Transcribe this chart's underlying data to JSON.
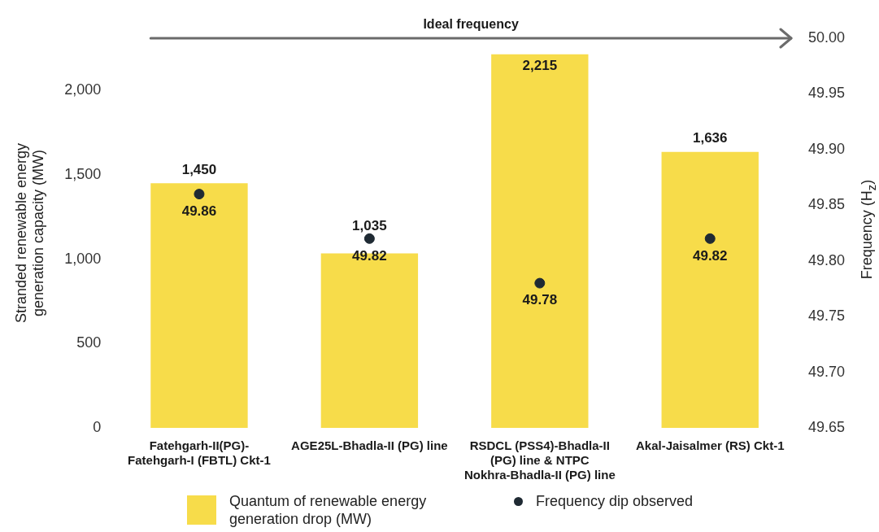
{
  "chart_data": {
    "type": "bar",
    "categories": [
      "Fatehgarh-II(PG)-Fatehgarh-I (FBTL) Ckt-1",
      "AGE25L-Bhadla-II (PG) line",
      "RSDCL (PSS4)-Bhadla-II (PG) line & NTPC Nokhra-Bhadla-II (PG) line",
      "Akal-Jaisalmer (RS) Ckt-1"
    ],
    "ylabel": "Stranded renewable energy generation capacity (MW)",
    "y2label": "Frequency (H$_{z}$)",
    "ylim": [
      0,
      2310
    ],
    "yticks": [
      {
        "value": 0,
        "label": "0"
      },
      {
        "value": 500,
        "label": "500"
      },
      {
        "value": 1000,
        "label": "1,000"
      },
      {
        "value": 1500,
        "label": "1,500"
      },
      {
        "value": 2000,
        "label": "2,000"
      }
    ],
    "y2lim": [
      49.65,
      50.0
    ],
    "y2ticks": [
      {
        "value": 49.65,
        "label": "49.65"
      },
      {
        "value": 49.7,
        "label": "49.70"
      },
      {
        "value": 49.75,
        "label": "49.75"
      },
      {
        "value": 49.8,
        "label": "49.80"
      },
      {
        "value": 49.85,
        "label": "49.85"
      },
      {
        "value": 49.9,
        "label": "49.90"
      },
      {
        "value": 49.95,
        "label": "49.95"
      },
      {
        "value": 50.0,
        "label": "50.00"
      }
    ],
    "legend": "bottom",
    "marker": "circle",
    "series": [
      {
        "name": "Quantum of renewable energy generation drop (MW)",
        "color": "#f7dc4a",
        "values": [
          1450,
          1035,
          2215,
          1636
        ],
        "value_labels": [
          "1,450",
          "1,035",
          "2,215",
          "1,636"
        ]
      },
      {
        "name": "Frequency dip observed",
        "type": "scatter",
        "axis": "y2",
        "color": "#1f2a33",
        "x": [
          "Fatehgarh-II(PG)-Fatehgarh-I (FBTL) Ckt-1",
          "AGE25L-Bhadla-II (PG) line",
          "RSDCL (PSS4)-Bhadla-II (PG) line & NTPC Nokhra-Bhadla-II (PG) line",
          "Akal-Jaisalmer (RS) Ckt-1"
        ],
        "values": [
          49.86,
          49.82,
          49.78,
          49.82
        ],
        "value_labels": [
          "49.86",
          "49.82",
          "49.78",
          "49.82"
        ]
      }
    ],
    "ref_lines": [
      {
        "axis": "y2",
        "value": 50.0,
        "label": "Ideal frequency",
        "color": "#6b6b6b"
      }
    ]
  }
}
